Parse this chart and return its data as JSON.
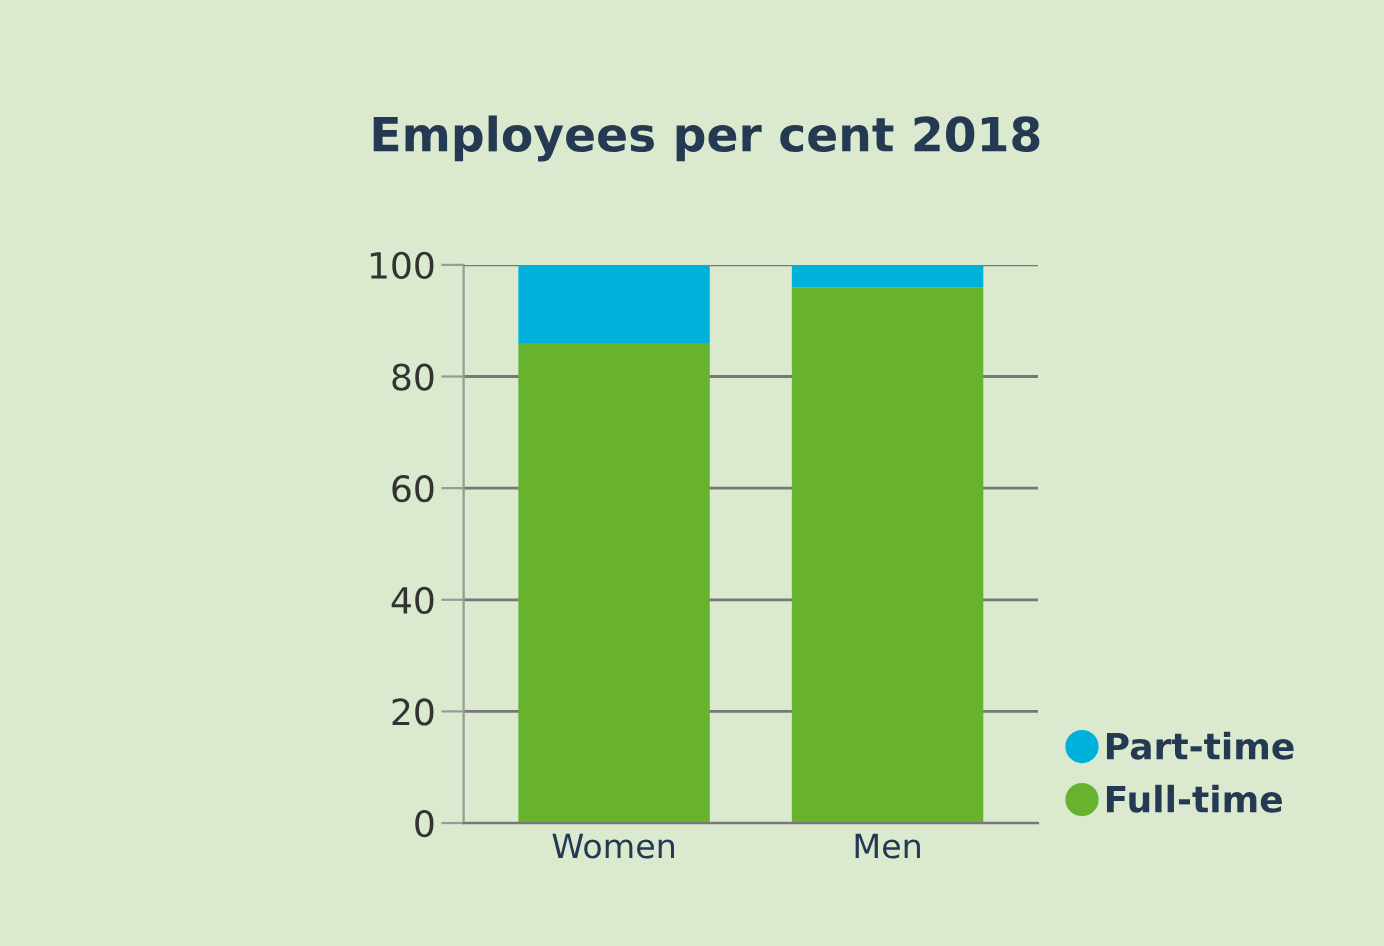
{
  "chart_data": {
    "type": "bar",
    "title": "Employees per cent 2018",
    "categories": [
      "Women",
      "Men"
    ],
    "stacked": true,
    "series": [
      {
        "name": "Full-time",
        "color": "#67b32e",
        "values": [
          86,
          96
        ]
      },
      {
        "name": "Part-time",
        "color": "#00b2db",
        "values": [
          14,
          4
        ]
      }
    ],
    "ylim": [
      0,
      100
    ],
    "yticks": [
      0,
      20,
      40,
      60,
      80,
      100
    ],
    "grid": "y",
    "legend": "bottom right"
  }
}
